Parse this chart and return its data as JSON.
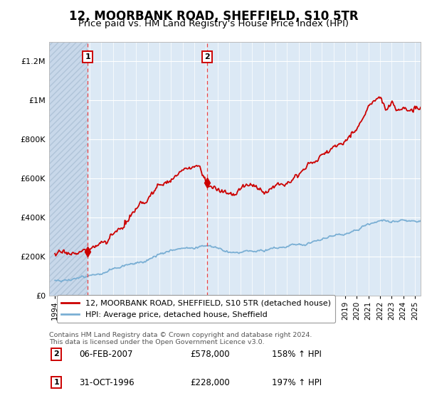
{
  "title": "12, MOORBANK ROAD, SHEFFIELD, S10 5TR",
  "subtitle": "Price paid vs. HM Land Registry's House Price Index (HPI)",
  "legend_line1": "12, MOORBANK ROAD, SHEFFIELD, S10 5TR (detached house)",
  "legend_line2": "HPI: Average price, detached house, Sheffield",
  "footnote": "Contains HM Land Registry data © Crown copyright and database right 2024.\nThis data is licensed under the Open Government Licence v3.0.",
  "sale1_date": "31-OCT-1996",
  "sale1_price": "£228,000",
  "sale1_hpi": "197% ↑ HPI",
  "sale2_date": "06-FEB-2007",
  "sale2_price": "£578,000",
  "sale2_hpi": "158% ↑ HPI",
  "sale1_x": 1996.83,
  "sale1_y": 228000,
  "sale2_x": 2007.09,
  "sale2_y": 578000,
  "xlim": [
    1993.5,
    2025.5
  ],
  "ylim": [
    0,
    1300000
  ],
  "yticks": [
    0,
    200000,
    400000,
    600000,
    800000,
    1000000,
    1200000
  ],
  "ytick_labels": [
    "£0",
    "£200K",
    "£400K",
    "£600K",
    "£800K",
    "£1M",
    "£1.2M"
  ],
  "bg_color": "#dce9f5",
  "hatch_color": "#c8d8ea",
  "line_color_red": "#cc0000",
  "line_color_blue": "#7aafd4",
  "grid_color": "#ffffff",
  "title_fontsize": 12,
  "subtitle_fontsize": 9.5
}
